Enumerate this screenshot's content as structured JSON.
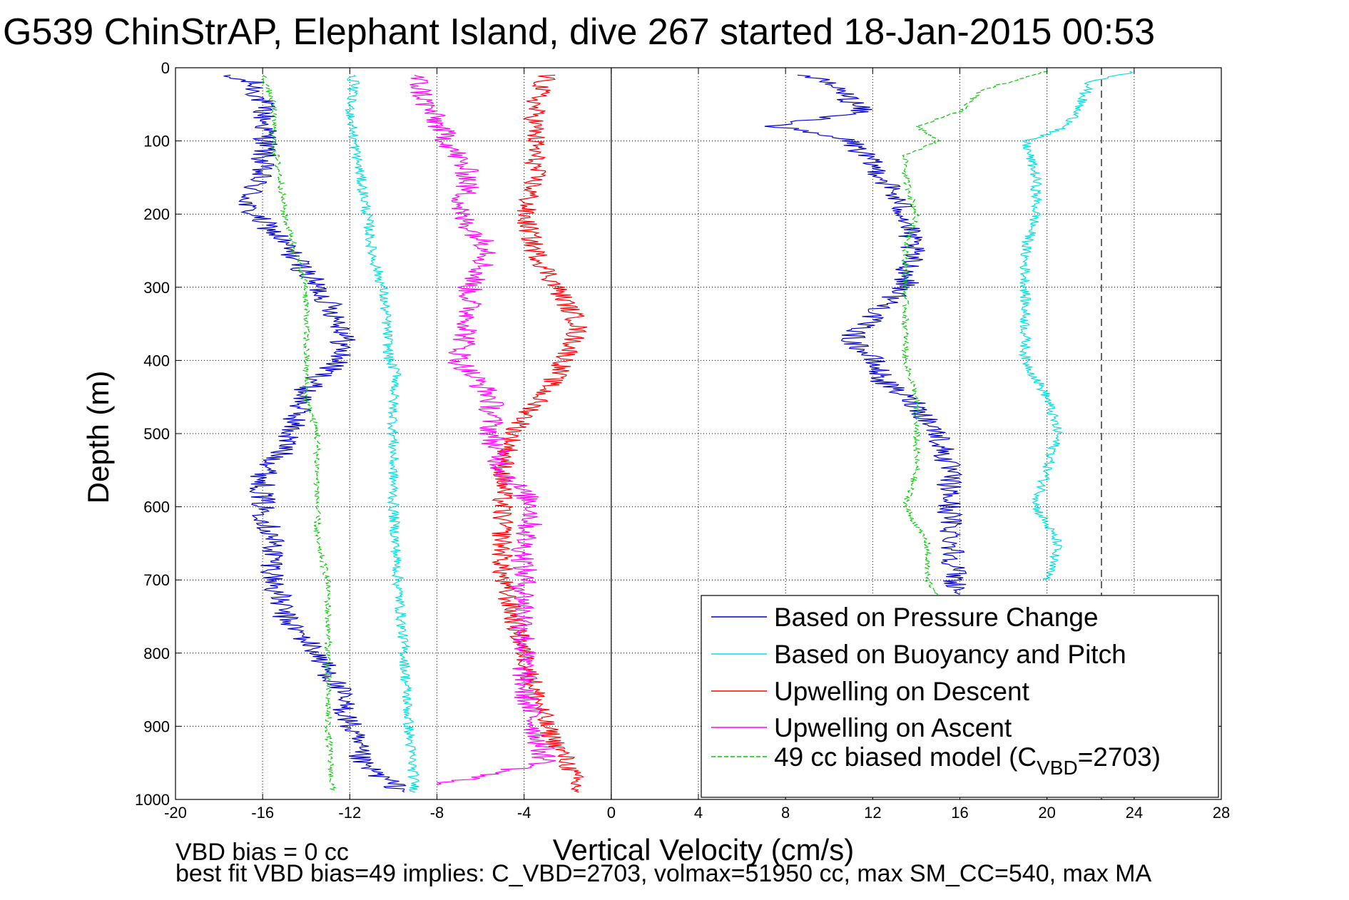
{
  "chart_data": {
    "type": "line",
    "title": "G539 ChinStrAP, Elephant Island, dive 267 started 18-Jan-2015 00:53",
    "xlabel": "Vertical Velocity (cm/s)",
    "ylabel": "Depth (m)",
    "xlim": [
      -20,
      28
    ],
    "ylim": [
      0,
      1000
    ],
    "y_reversed": true,
    "grid": true,
    "x_ticks": [
      -20,
      -16,
      -12,
      -8,
      -4,
      0,
      4,
      8,
      12,
      16,
      20,
      24,
      28
    ],
    "x_tick_labels": [
      "-20",
      "-16",
      "-12",
      "-8",
      "-4",
      "0",
      "4",
      "8",
      "12",
      "16",
      "20",
      "24",
      "28"
    ],
    "y_ticks": [
      0,
      100,
      200,
      300,
      400,
      500,
      600,
      700,
      800,
      900,
      1000
    ],
    "y_tick_labels": [
      "0",
      "100",
      "200",
      "300",
      "400",
      "500",
      "600",
      "700",
      "800",
      "900",
      "1000"
    ],
    "vertical_lines": [
      {
        "x": 0,
        "style": "solid",
        "color": "#000000"
      },
      {
        "x": 22.5,
        "style": "dashed",
        "color": "#000000"
      }
    ],
    "legend_position": "bottom-right",
    "series": [
      {
        "name": "Based on Pressure Change",
        "color": "#0000cc",
        "style": "solid",
        "noise": 0.6,
        "segments": [
          {
            "depth": [
              10,
              20,
              50,
              100,
              150,
              190,
              230,
              280,
              320,
              360,
              400,
              440,
              480,
              520,
              560,
              600,
              650,
              700,
              750,
              800,
              850,
              900,
              950,
              990
            ],
            "velocity": [
              -18,
              -16.5,
              -16,
              -15.8,
              -16.2,
              -16.8,
              -15.3,
              -14,
              -13,
              -12.2,
              -12.5,
              -14,
              -14.5,
              -15,
              -16,
              -16,
              -15.5,
              -15.5,
              -15,
              -13.5,
              -12.5,
              -12,
              -11.5,
              -9.5
            ]
          },
          {
            "depth": [
              10,
              30,
              60,
              80,
              100,
              150,
              200,
              250,
              300,
              340,
              370,
              400,
              430,
              460,
              500,
              550,
              600,
              650,
              700,
              720
            ],
            "velocity": [
              9,
              10.5,
              11.5,
              7.5,
              11,
              12.5,
              13.5,
              13.8,
              13.5,
              12,
              11,
              12,
              12.5,
              14,
              15,
              15.5,
              15.5,
              15.7,
              15.8,
              16
            ]
          }
        ]
      },
      {
        "name": "Based on Buoyancy and Pitch",
        "color": "#00e0e0",
        "style": "solid",
        "noise": 0.25,
        "segments": [
          {
            "depth": [
              10,
              20,
              50,
              100,
              150,
              200,
              250,
              300,
              350,
              400,
              420,
              450,
              500,
              600,
              700,
              800,
              900,
              990
            ],
            "velocity": [
              -12,
              -11.8,
              -12,
              -11.8,
              -11.5,
              -11.2,
              -11,
              -10.5,
              -10.3,
              -10.2,
              -9.8,
              -10,
              -10,
              -10,
              -9.8,
              -9.5,
              -9.3,
              -9
            ]
          },
          {
            "depth": [
              5,
              20,
              50,
              80,
              100,
              150,
              200,
              250,
              300,
              350,
              400,
              450,
              500,
              550,
              600,
              650,
              700
            ],
            "velocity": [
              24,
              22,
              21.5,
              21,
              19,
              19.5,
              19.5,
              19,
              19,
              19,
              19,
              20,
              20.5,
              20,
              19.5,
              20.5,
              20
            ]
          }
        ]
      },
      {
        "name": "Upwelling on Descent",
        "color": "#ff0000",
        "style": "solid",
        "noise": 0.5,
        "segments": [
          {
            "depth": [
              10,
              50,
              100,
              150,
              200,
              250,
              300,
              350,
              380,
              420,
              460,
              500,
              550,
              600,
              650,
              700,
              750,
              800,
              850,
              900,
              950,
              990
            ],
            "velocity": [
              -3,
              -3.5,
              -3.5,
              -3.5,
              -4,
              -3.5,
              -2.5,
              -1.5,
              -1.8,
              -2.5,
              -3.5,
              -4.5,
              -5,
              -5,
              -5,
              -5,
              -4.5,
              -4,
              -3.5,
              -3,
              -2,
              -1.5
            ]
          }
        ]
      },
      {
        "name": "Upwelling on Ascent",
        "color": "#ff00ff",
        "style": "solid",
        "noise": 0.6,
        "segments": [
          {
            "depth": [
              10,
              50,
              100,
              150,
              200,
              250,
              300,
              350,
              400,
              450,
              500,
              550,
              600,
              650,
              700,
              750,
              800,
              850,
              900,
              950,
              980
            ],
            "velocity": [
              -9,
              -8.5,
              -7.5,
              -6.5,
              -7,
              -5.5,
              -6.5,
              -6.5,
              -7,
              -5.5,
              -5.5,
              -5,
              -3.5,
              -4,
              -4,
              -4,
              -4,
              -4,
              -3.5,
              -3,
              -8
            ]
          }
        ]
      },
      {
        "name": "49 cc biased model (C",
        "name_sub": "VBD",
        "name_suffix": "=2703)",
        "color": "#00cc00",
        "style": "dashed",
        "noise": 0.15,
        "segments": [
          {
            "depth": [
              10,
              50,
              100,
              150,
              200,
              250,
              300,
              350,
              400,
              450,
              500,
              550,
              600,
              650,
              700,
              800,
              900,
              990
            ],
            "velocity": [
              -16,
              -15.5,
              -15.5,
              -15.2,
              -15,
              -14.5,
              -14,
              -14,
              -14,
              -14,
              -13.5,
              -13.5,
              -13.5,
              -13.5,
              -13,
              -13,
              -13,
              -12.8
            ]
          },
          {
            "depth": [
              5,
              30,
              60,
              80,
              100,
              120,
              150,
              200,
              250,
              300,
              350,
              400,
              450,
              500,
              550,
              600,
              650,
              700,
              720
            ],
            "velocity": [
              20,
              17,
              16,
              14,
              15,
              13.5,
              13.5,
              14,
              13.5,
              13.5,
              13.5,
              13.5,
              14,
              14,
              14,
              13.5,
              14.5,
              14.5,
              15
            ]
          }
        ]
      }
    ]
  },
  "footer": {
    "line1": "VBD bias = 0 cc",
    "line2": "best fit VBD bias=49 implies: C_VBD=2703, volmax=51950 cc, max SM_CC=540, max MA"
  }
}
